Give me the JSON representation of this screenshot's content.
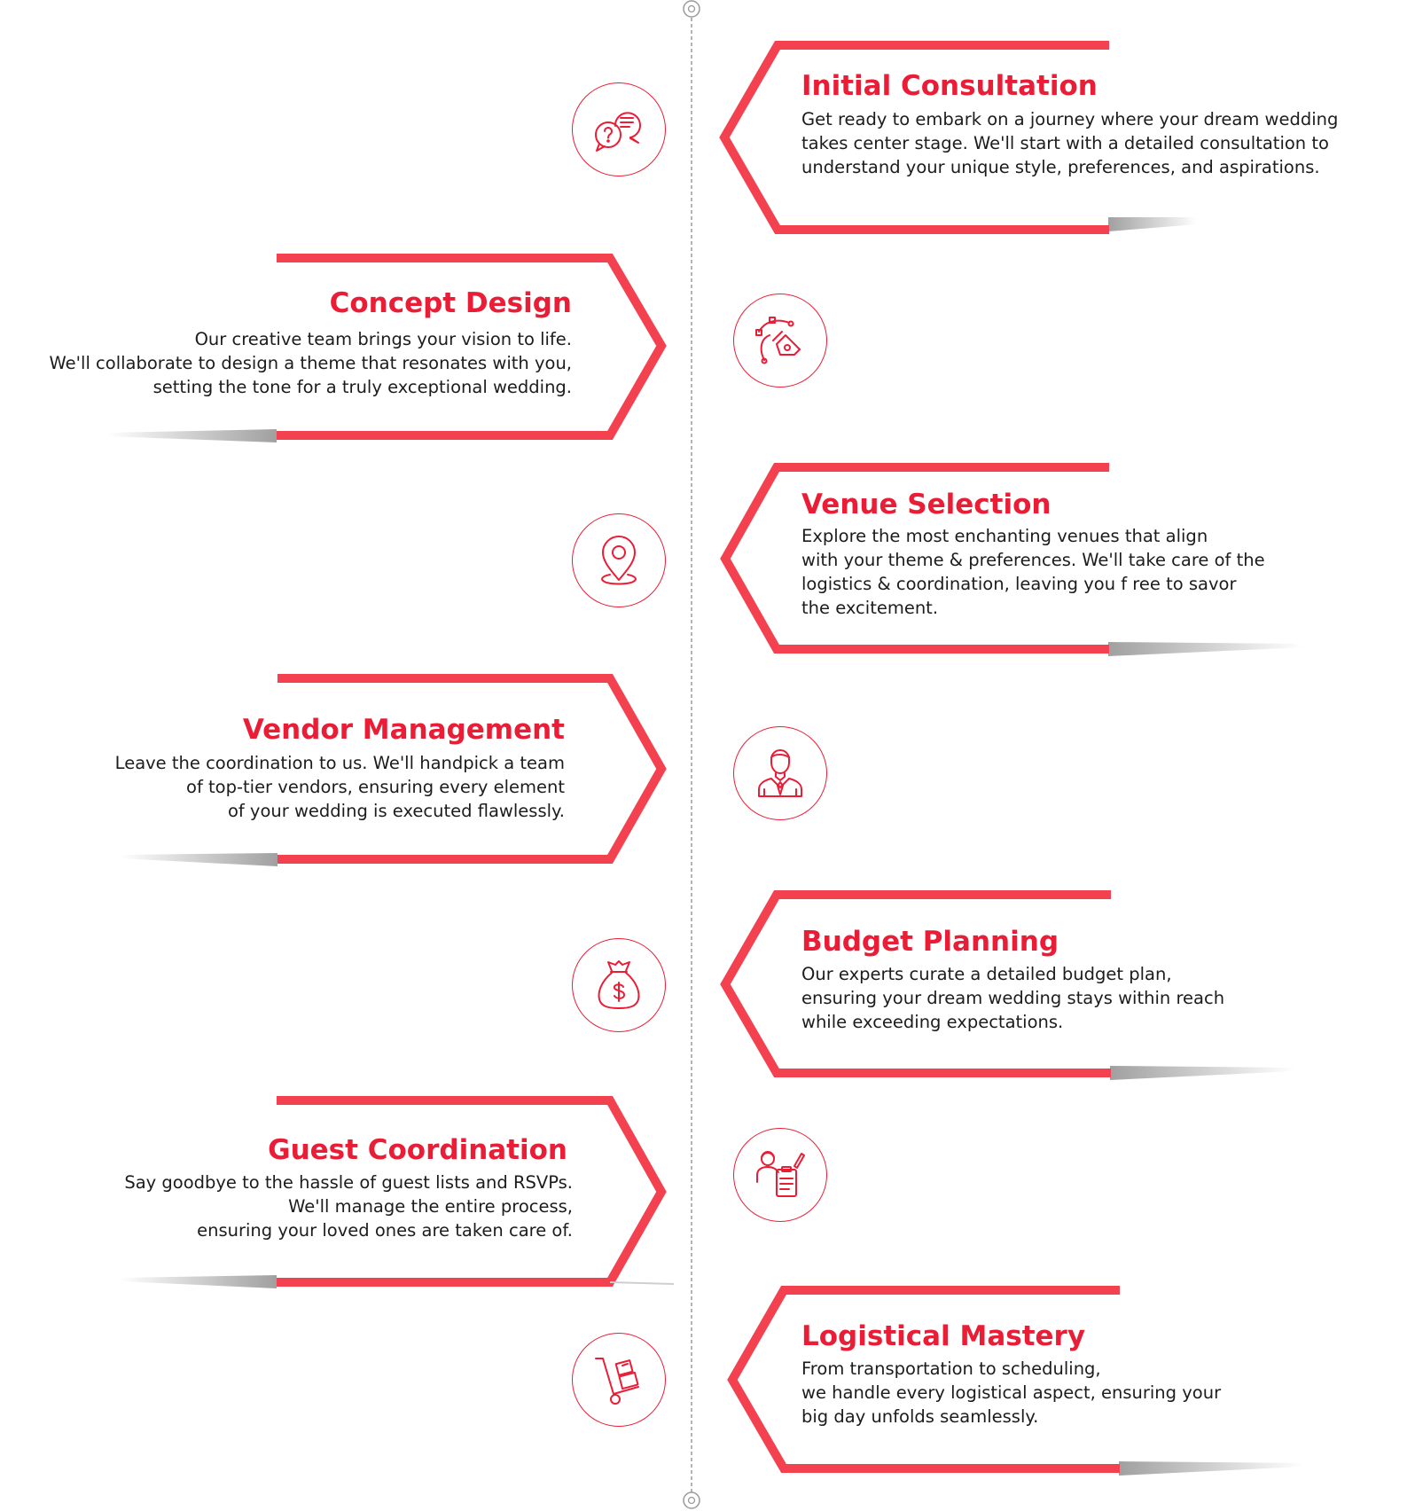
{
  "colors": {
    "accent": "#ea1d36",
    "text": "#1c1c1c",
    "line": "#9a9a9a"
  },
  "steps": [
    {
      "title": "Initial Consultation",
      "description": "Get ready to embark on a journey where your dream wedding\ntakes center stage. We'll start with a detailed consultation to\nunderstand your unique style, preferences, and aspirations.",
      "icon": "chat-question-icon"
    },
    {
      "title": "Concept Design",
      "description": "Our creative team brings your vision to life.\nWe'll collaborate to design a theme that resonates with you,\nsetting the tone for a truly exceptional wedding.",
      "icon": "pen-tool-icon"
    },
    {
      "title": "Venue Selection",
      "description": "Explore the most enchanting venues that align\nwith your theme & preferences. We'll take care of the\nlogistics & coordination, leaving you f ree to savor\nthe excitement.",
      "icon": "map-pin-icon"
    },
    {
      "title": "Vendor Management",
      "description": "Leave the coordination to us. We'll handpick a team\nof top-tier vendors, ensuring every element\nof your wedding is executed flawlessly.",
      "icon": "businessman-icon"
    },
    {
      "title": "Budget Planning",
      "description": "Our experts curate a detailed budget plan,\nensuring your dream wedding stays within reach\nwhile exceeding expectations.",
      "icon": "money-bag-icon"
    },
    {
      "title": "Guest Coordination",
      "description": "Say goodbye to the hassle of guest lists and RSVPs.\nWe'll manage the entire process,\nensuring your loved ones are taken care of.",
      "icon": "clipboard-person-icon"
    },
    {
      "title": "Logistical Mastery",
      "description": "From transportation to scheduling,\nwe handle every logistical aspect, ensuring your\nbig day unfolds seamlessly.",
      "icon": "hand-truck-icon"
    }
  ]
}
